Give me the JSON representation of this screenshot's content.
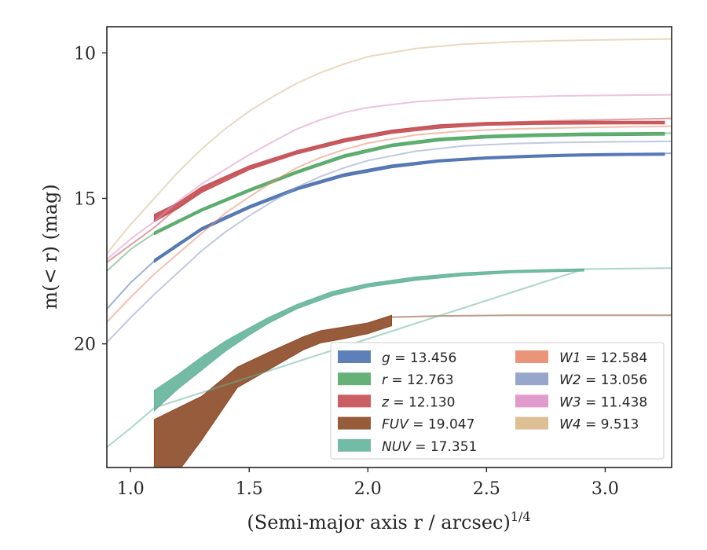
{
  "chart_data": {
    "type": "line",
    "xlabel": "(Semi-major axis r / arcsec)",
    "xlabel_sup": "1/4",
    "ylabel": "m(< r) (mag)",
    "xlim": [
      0.9,
      3.28
    ],
    "ylim": [
      24.25,
      9.1
    ],
    "y_inverted": true,
    "xticks": [
      1.0,
      1.5,
      2.0,
      2.5,
      3.0
    ],
    "xtick_labels": [
      "1.0",
      "1.5",
      "2.0",
      "2.5",
      "3.0"
    ],
    "yticks": [
      10,
      15,
      20
    ],
    "ytick_labels": [
      "10",
      "15",
      "20"
    ],
    "legend_position": "lower-right",
    "series": [
      {
        "name": "g = 13.456",
        "legend_sym": "g",
        "legend_val": "13.456",
        "color": "#4c72b0",
        "faint": [
          [
            0.9,
            18.8
          ],
          [
            1.0,
            17.9
          ],
          [
            1.1,
            17.15
          ],
          [
            1.2,
            16.55
          ],
          [
            1.3,
            16.05
          ],
          [
            1.4,
            15.62
          ],
          [
            1.5,
            15.3
          ],
          [
            1.6,
            14.95
          ],
          [
            1.7,
            14.67
          ],
          [
            1.8,
            14.42
          ],
          [
            1.9,
            14.2
          ],
          [
            2.0,
            14.02
          ],
          [
            2.2,
            13.78
          ],
          [
            2.4,
            13.65
          ],
          [
            2.6,
            13.56
          ],
          [
            2.8,
            13.5
          ],
          [
            3.0,
            13.47
          ],
          [
            3.28,
            13.45
          ]
        ],
        "band": [
          [
            1.1,
            17.1,
            17.2
          ],
          [
            1.3,
            16.0,
            16.1
          ],
          [
            1.5,
            15.25,
            15.35
          ],
          [
            1.7,
            14.62,
            14.72
          ],
          [
            1.9,
            14.15,
            14.25
          ],
          [
            2.1,
            13.85,
            13.95
          ],
          [
            2.3,
            13.67,
            13.75
          ],
          [
            2.5,
            13.57,
            13.65
          ],
          [
            2.7,
            13.51,
            13.59
          ],
          [
            2.9,
            13.47,
            13.55
          ],
          [
            3.1,
            13.45,
            13.53
          ],
          [
            3.25,
            13.44,
            13.52
          ]
        ]
      },
      {
        "name": "r = 12.763",
        "legend_sym": "r",
        "legend_val": "12.763",
        "color": "#55a868",
        "faint": [
          [
            0.9,
            17.5
          ],
          [
            1.0,
            16.75
          ],
          [
            1.1,
            16.2
          ],
          [
            1.2,
            15.78
          ],
          [
            1.3,
            15.4
          ],
          [
            1.4,
            15.05
          ],
          [
            1.5,
            14.72
          ],
          [
            1.6,
            14.42
          ],
          [
            1.7,
            14.1
          ],
          [
            1.8,
            13.8
          ],
          [
            1.9,
            13.55
          ],
          [
            2.0,
            13.32
          ],
          [
            2.2,
            13.05
          ],
          [
            2.4,
            12.92
          ],
          [
            2.6,
            12.85
          ],
          [
            2.8,
            12.8
          ],
          [
            3.0,
            12.77
          ],
          [
            3.28,
            12.76
          ]
        ],
        "band": [
          [
            1.1,
            16.15,
            16.25
          ],
          [
            1.3,
            15.35,
            15.45
          ],
          [
            1.5,
            14.67,
            14.77
          ],
          [
            1.7,
            14.05,
            14.15
          ],
          [
            1.9,
            13.5,
            13.6
          ],
          [
            2.1,
            13.13,
            13.23
          ],
          [
            2.3,
            12.93,
            13.03
          ],
          [
            2.5,
            12.83,
            12.93
          ],
          [
            2.7,
            12.78,
            12.88
          ],
          [
            2.9,
            12.75,
            12.85
          ],
          [
            3.1,
            12.74,
            12.84
          ],
          [
            3.25,
            12.73,
            12.83
          ]
        ]
      },
      {
        "name": "z = 12.130",
        "legend_sym": "z",
        "legend_val": "12.130",
        "color": "#c44e52",
        "faint": [
          [
            0.9,
            17.2
          ],
          [
            1.0,
            16.6
          ],
          [
            1.1,
            16.0
          ],
          [
            1.2,
            15.3
          ],
          [
            1.3,
            14.7
          ],
          [
            1.4,
            14.28
          ],
          [
            1.5,
            13.95
          ],
          [
            1.6,
            13.68
          ],
          [
            1.7,
            13.42
          ],
          [
            1.8,
            13.2
          ],
          [
            1.9,
            13.0
          ],
          [
            2.0,
            12.82
          ],
          [
            2.2,
            12.58
          ],
          [
            2.4,
            12.45
          ],
          [
            2.6,
            12.38
          ],
          [
            2.8,
            12.33
          ],
          [
            3.0,
            12.3
          ],
          [
            3.28,
            12.25
          ]
        ],
        "band": [
          [
            1.1,
            15.55,
            15.8
          ],
          [
            1.2,
            15.15,
            15.35
          ],
          [
            1.3,
            14.6,
            14.8
          ],
          [
            1.5,
            13.88,
            14.02
          ],
          [
            1.7,
            13.36,
            13.48
          ],
          [
            1.9,
            12.95,
            13.07
          ],
          [
            2.1,
            12.65,
            12.77
          ],
          [
            2.3,
            12.47,
            12.59
          ],
          [
            2.5,
            12.39,
            12.49
          ],
          [
            2.7,
            12.36,
            12.46
          ],
          [
            2.9,
            12.35,
            12.45
          ],
          [
            3.1,
            12.35,
            12.44
          ],
          [
            3.25,
            12.35,
            12.44
          ]
        ]
      },
      {
        "name": "FUV = 19.047",
        "legend_sym": "FUV",
        "legend_val": "19.047",
        "color": "#8c4a26",
        "faint": [
          [
            2.1,
            19.08
          ],
          [
            2.3,
            19.04
          ],
          [
            2.6,
            19.02
          ],
          [
            2.9,
            19.02
          ],
          [
            3.28,
            19.02
          ]
        ],
        "band": [
          [
            1.1,
            22.6,
            25.5
          ],
          [
            1.3,
            21.8,
            23.3
          ],
          [
            1.45,
            20.8,
            21.5
          ],
          [
            1.58,
            20.3,
            20.9
          ],
          [
            1.73,
            19.75,
            20.2
          ],
          [
            1.8,
            19.55,
            19.97
          ],
          [
            1.9,
            19.42,
            19.82
          ],
          [
            2.0,
            19.28,
            19.65
          ],
          [
            2.1,
            19.02,
            19.38
          ]
        ]
      },
      {
        "name": "NUV = 17.351",
        "legend_sym": "NUV",
        "legend_val": "17.351",
        "color": "#64b49b",
        "faint": [
          [
            0.9,
            23.55
          ],
          [
            1.0,
            22.9
          ],
          [
            1.1,
            22.2
          ],
          [
            2.91,
            17.43
          ],
          [
            3.0,
            17.42
          ],
          [
            3.28,
            17.4
          ]
        ],
        "band": [
          [
            1.1,
            21.6,
            22.3
          ],
          [
            1.2,
            21.05,
            21.55
          ],
          [
            1.3,
            20.45,
            20.9
          ],
          [
            1.4,
            19.9,
            20.25
          ],
          [
            1.5,
            19.45,
            19.7
          ],
          [
            1.58,
            19.1,
            19.3
          ],
          [
            1.7,
            18.65,
            18.8
          ],
          [
            1.85,
            18.2,
            18.35
          ],
          [
            2.0,
            17.93,
            18.05
          ],
          [
            2.2,
            17.7,
            17.82
          ],
          [
            2.4,
            17.56,
            17.66
          ],
          [
            2.6,
            17.48,
            17.56
          ],
          [
            2.8,
            17.44,
            17.52
          ],
          [
            2.91,
            17.42,
            17.5
          ]
        ]
      },
      {
        "name": "W1 = 12.584",
        "legend_sym": "W1",
        "legend_val": "12.584",
        "color": "#e88a6a",
        "faint": [
          [
            0.9,
            19.25
          ],
          [
            1.0,
            18.4
          ],
          [
            1.1,
            17.6
          ],
          [
            1.2,
            16.9
          ],
          [
            1.3,
            16.2
          ],
          [
            1.4,
            15.5
          ],
          [
            1.5,
            14.95
          ],
          [
            1.6,
            14.42
          ],
          [
            1.7,
            13.95
          ],
          [
            1.8,
            13.6
          ],
          [
            1.9,
            13.32
          ],
          [
            2.0,
            13.1
          ],
          [
            2.2,
            12.82
          ],
          [
            2.4,
            12.68
          ],
          [
            2.6,
            12.62
          ],
          [
            2.8,
            12.58
          ],
          [
            3.0,
            12.55
          ],
          [
            3.28,
            12.52
          ]
        ],
        "band": []
      },
      {
        "name": "W2 = 13.056",
        "legend_sym": "W2",
        "legend_val": "13.056",
        "color": "#8c9cc4",
        "faint": [
          [
            0.9,
            19.95
          ],
          [
            1.0,
            19.1
          ],
          [
            1.1,
            18.3
          ],
          [
            1.2,
            17.55
          ],
          [
            1.3,
            16.8
          ],
          [
            1.4,
            16.15
          ],
          [
            1.5,
            15.6
          ],
          [
            1.6,
            15.1
          ],
          [
            1.7,
            14.62
          ],
          [
            1.8,
            14.25
          ],
          [
            1.9,
            13.95
          ],
          [
            2.0,
            13.7
          ],
          [
            2.2,
            13.38
          ],
          [
            2.4,
            13.2
          ],
          [
            2.6,
            13.12
          ],
          [
            2.8,
            13.08
          ],
          [
            3.0,
            13.06
          ],
          [
            3.28,
            13.04
          ]
        ],
        "band": []
      },
      {
        "name": "W3 = 11.438",
        "legend_sym": "W3",
        "legend_val": "11.438",
        "color": "#dd8fc6",
        "faint": [
          [
            0.9,
            17.1
          ],
          [
            1.0,
            16.4
          ],
          [
            1.1,
            15.8
          ],
          [
            1.2,
            15.1
          ],
          [
            1.3,
            14.5
          ],
          [
            1.4,
            14.0
          ],
          [
            1.5,
            13.5
          ],
          [
            1.6,
            13.05
          ],
          [
            1.7,
            12.62
          ],
          [
            1.8,
            12.3
          ],
          [
            1.9,
            12.05
          ],
          [
            2.0,
            11.88
          ],
          [
            2.2,
            11.68
          ],
          [
            2.4,
            11.58
          ],
          [
            2.6,
            11.52
          ],
          [
            2.8,
            11.48
          ],
          [
            3.0,
            11.46
          ],
          [
            3.28,
            11.44
          ]
        ],
        "band": []
      },
      {
        "name": "W4 = 9.513",
        "legend_sym": "W4",
        "legend_val": "9.513",
        "color": "#d9b88a",
        "faint": [
          [
            0.9,
            16.9
          ],
          [
            1.0,
            15.9
          ],
          [
            1.1,
            15.0
          ],
          [
            1.2,
            14.1
          ],
          [
            1.3,
            13.3
          ],
          [
            1.4,
            12.6
          ],
          [
            1.5,
            12.0
          ],
          [
            1.6,
            11.5
          ],
          [
            1.7,
            11.05
          ],
          [
            1.8,
            10.68
          ],
          [
            1.9,
            10.38
          ],
          [
            2.0,
            10.13
          ],
          [
            2.2,
            9.85
          ],
          [
            2.4,
            9.7
          ],
          [
            2.6,
            9.62
          ],
          [
            2.8,
            9.58
          ],
          [
            3.0,
            9.55
          ],
          [
            3.28,
            9.52
          ]
        ],
        "band": []
      }
    ]
  }
}
